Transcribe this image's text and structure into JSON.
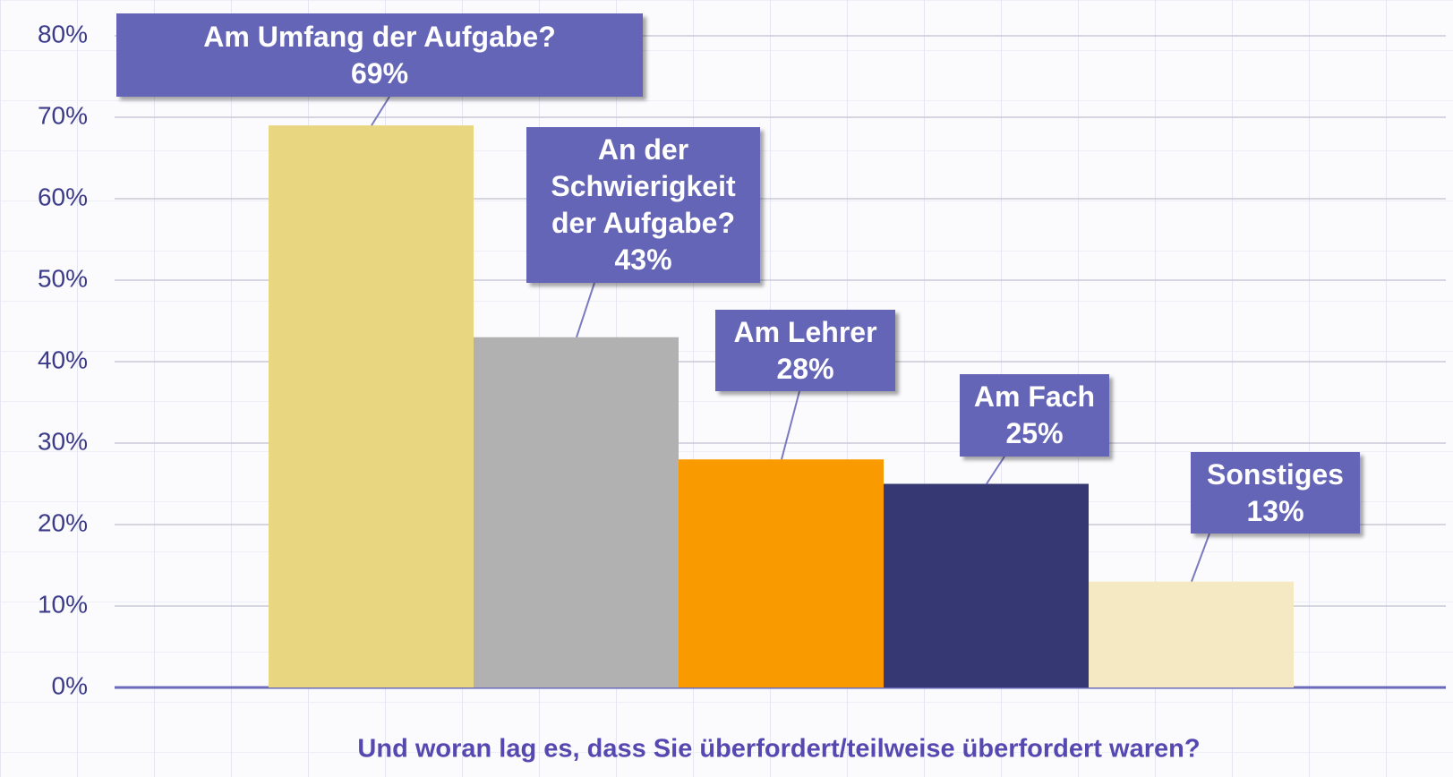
{
  "chart_data": {
    "type": "bar",
    "categories": [
      "Am Umfang der Aufgabe?",
      "An der Schwierigkeit der Aufgabe?",
      "Am Lehrer",
      "Am Fach",
      "Sonstiges"
    ],
    "values": [
      69,
      43,
      28,
      25,
      13
    ],
    "value_labels": [
      "69%",
      "43%",
      "28%",
      "25%",
      "13%"
    ],
    "colors": [
      "#e9d680",
      "#b1b1b1",
      "#f99a00",
      "#353873",
      "#f4e9c2"
    ],
    "xlabel": "Und woran lag es, dass Sie überfordert/teilweise überfordert waren?",
    "ylim": [
      0,
      80
    ],
    "yticks": [
      {
        "value": 0,
        "label": "0%"
      },
      {
        "value": 10,
        "label": "10%"
      },
      {
        "value": 20,
        "label": "20%"
      },
      {
        "value": 30,
        "label": "30%"
      },
      {
        "value": 40,
        "label": "40%"
      },
      {
        "value": 50,
        "label": "50%"
      },
      {
        "value": 60,
        "label": "60%"
      },
      {
        "value": 70,
        "label": "70%"
      },
      {
        "value": 80,
        "label": "80%"
      }
    ],
    "grid": true
  }
}
